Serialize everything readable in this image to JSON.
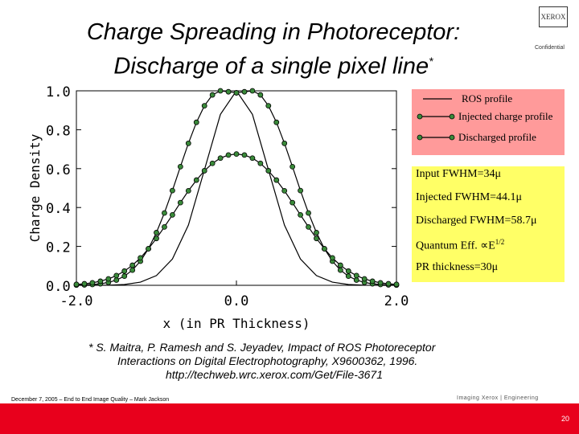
{
  "slide": {
    "title_line1": "Charge Spreading in Photoreceptor:",
    "title_line2": "Discharge of a single pixel line",
    "title_sup": "*",
    "logo_text": "XEROX",
    "confidential": "Confidential",
    "citation_line1": "* S. Maitra, P. Ramesh and S. Jeyadev, Impact of ROS Photoreceptor",
    "citation_line2": "Interactions on Digital Electrophotography,  X9600362, 1996.",
    "citation_line3": "http://techweb.wrc.xerox.com/Get/File-3671",
    "footer_left": "December 7, 2005 – End to End Image Quality – Mark Jackson",
    "footer_logo": "Imaging Xerox | Engineering",
    "page_number": "20"
  },
  "legend": {
    "ros": "ROS profile",
    "injected": "Injected charge profile",
    "discharged": "Discharged profile"
  },
  "info": {
    "input_fwhm": "Input FWHM=34μ",
    "injected_fwhm": "Injected FWHM=44.1μ",
    "discharged_fwhm": "Discharged FWHM=58.7μ",
    "quantum_eff": "Quantum Eff. ∝E",
    "quantum_eff_sup": "1/2",
    "pr_thickness": "PR thickness=30μ"
  },
  "colors": {
    "marker_fill": "#3a8a3a",
    "legend_bg": "#ff9a9a",
    "info_bg": "#ffff66",
    "footer_bar": "#e8001c"
  },
  "chart_data": {
    "type": "line",
    "xlabel": "x (in PR Thickness)",
    "ylabel": "Charge Density",
    "xlim": [
      -2.0,
      2.0
    ],
    "ylim": [
      0.0,
      1.0
    ],
    "x_ticks": [
      "-2.0",
      "0.0",
      "2.0"
    ],
    "y_ticks": [
      "0.0",
      "0.2",
      "0.4",
      "0.6",
      "0.8",
      "1.0"
    ],
    "grid": false,
    "series": [
      {
        "name": "ROS profile",
        "marker": false,
        "x": [
          -2.0,
          -1.8,
          -1.6,
          -1.4,
          -1.2,
          -1.0,
          -0.8,
          -0.6,
          -0.4,
          -0.2,
          0.0,
          0.2,
          0.4,
          0.6,
          0.8,
          1.0,
          1.2,
          1.4,
          1.6,
          1.8,
          2.0
        ],
        "y": [
          0.0,
          0.0,
          0.001,
          0.004,
          0.016,
          0.05,
          0.135,
          0.31,
          0.594,
          0.879,
          1.0,
          0.879,
          0.594,
          0.31,
          0.135,
          0.05,
          0.016,
          0.004,
          0.001,
          0.0,
          0.0
        ]
      },
      {
        "name": "Injected charge profile",
        "marker": true,
        "x": [
          -2.0,
          -1.9,
          -1.8,
          -1.7,
          -1.6,
          -1.5,
          -1.4,
          -1.3,
          -1.2,
          -1.1,
          -1.0,
          -0.9,
          -0.8,
          -0.7,
          -0.6,
          -0.5,
          -0.4,
          -0.3,
          -0.2,
          -0.1,
          0.0,
          0.1,
          0.2,
          0.3,
          0.4,
          0.5,
          0.6,
          0.7,
          0.8,
          0.9,
          1.0,
          1.1,
          1.2,
          1.3,
          1.4,
          1.5,
          1.6,
          1.7,
          1.8,
          1.9,
          2.0
        ],
        "y": [
          0.001,
          0.002,
          0.004,
          0.008,
          0.015,
          0.027,
          0.047,
          0.078,
          0.124,
          0.188,
          0.271,
          0.372,
          0.487,
          0.61,
          0.73,
          0.838,
          0.923,
          0.979,
          1.0,
          0.995,
          0.99,
          0.995,
          1.0,
          0.979,
          0.923,
          0.838,
          0.73,
          0.61,
          0.487,
          0.372,
          0.271,
          0.188,
          0.124,
          0.078,
          0.047,
          0.027,
          0.015,
          0.008,
          0.004,
          0.002,
          0.001
        ]
      },
      {
        "name": "Discharged profile",
        "marker": true,
        "x": [
          -2.0,
          -1.9,
          -1.8,
          -1.7,
          -1.6,
          -1.5,
          -1.4,
          -1.3,
          -1.2,
          -1.1,
          -1.0,
          -0.9,
          -0.8,
          -0.7,
          -0.6,
          -0.5,
          -0.4,
          -0.3,
          -0.2,
          -0.1,
          0.0,
          0.1,
          0.2,
          0.3,
          0.4,
          0.5,
          0.6,
          0.7,
          0.8,
          0.9,
          1.0,
          1.1,
          1.2,
          1.3,
          1.4,
          1.5,
          1.6,
          1.7,
          1.8,
          1.9,
          2.0
        ],
        "y": [
          0.005,
          0.008,
          0.013,
          0.021,
          0.033,
          0.05,
          0.073,
          0.103,
          0.141,
          0.188,
          0.241,
          0.3,
          0.362,
          0.425,
          0.486,
          0.541,
          0.589,
          0.627,
          0.654,
          0.67,
          0.675,
          0.67,
          0.654,
          0.627,
          0.589,
          0.541,
          0.486,
          0.425,
          0.362,
          0.3,
          0.241,
          0.188,
          0.141,
          0.103,
          0.073,
          0.05,
          0.033,
          0.021,
          0.013,
          0.008,
          0.005
        ]
      }
    ]
  }
}
